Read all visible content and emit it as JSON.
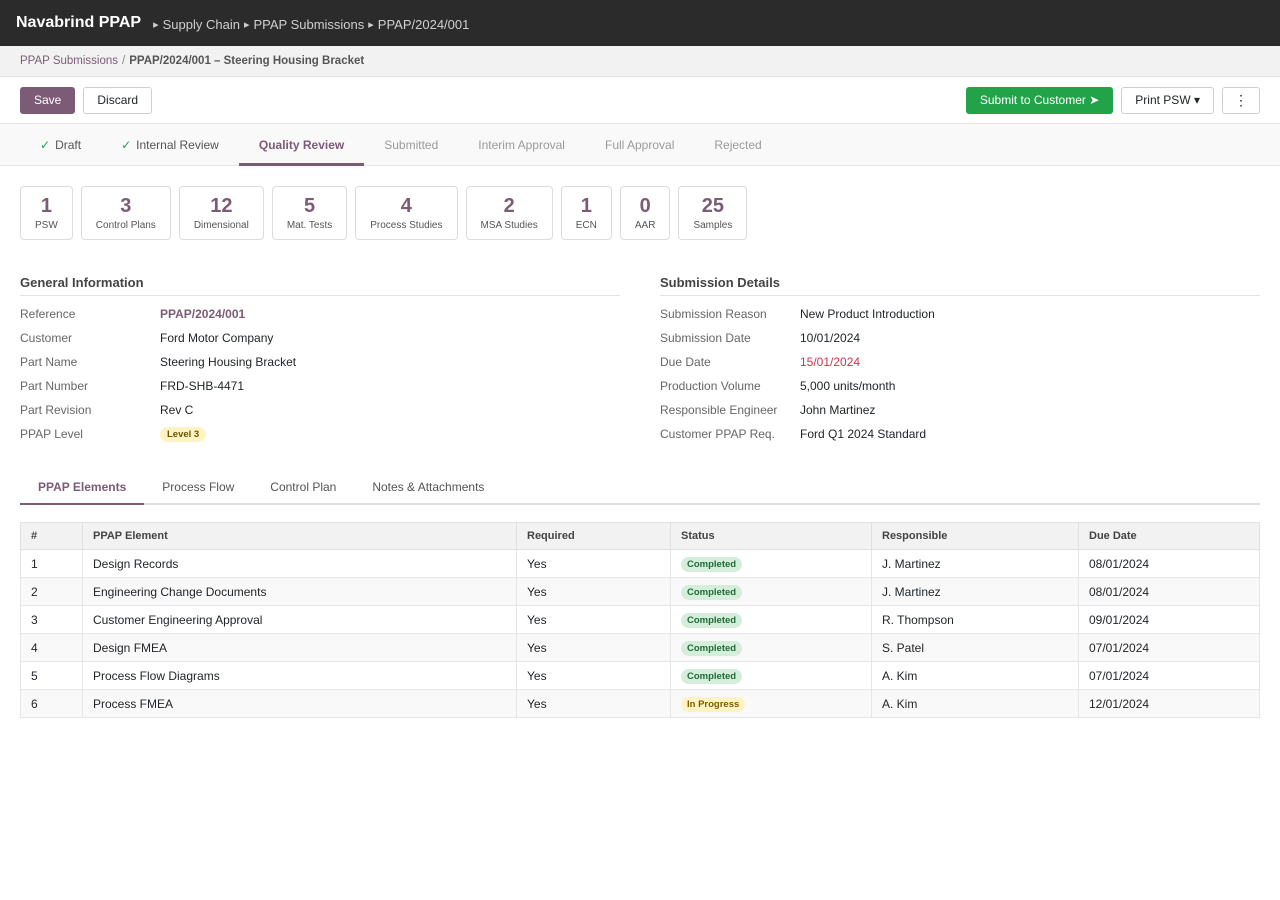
{
  "app": {
    "name": "Navabrind PPAP",
    "breadcrumbs": [
      "Supply Chain",
      "PPAP Submissions",
      "PPAP/2024/001"
    ]
  },
  "crumbbar": {
    "parent": "PPAP Submissions",
    "separator": "/",
    "current": "PPAP/2024/001 – Steering Housing Bracket"
  },
  "controls": {
    "save": "Save",
    "discard": "Discard",
    "submit": "Submit to Customer ➤",
    "print": "Print PSW ▾",
    "more": "⋮"
  },
  "stages": [
    {
      "label": "Draft",
      "state": "done"
    },
    {
      "label": "Internal Review",
      "state": "done"
    },
    {
      "label": "Quality Review",
      "state": "active"
    },
    {
      "label": "Submitted",
      "state": "todo"
    },
    {
      "label": "Interim Approval",
      "state": "todo"
    },
    {
      "label": "Full Approval",
      "state": "todo"
    },
    {
      "label": "Rejected",
      "state": "todo"
    }
  ],
  "stats": [
    {
      "value": "1",
      "label": "PSW"
    },
    {
      "value": "3",
      "label": "Control Plans"
    },
    {
      "value": "12",
      "label": "Dimensional"
    },
    {
      "value": "5",
      "label": "Mat. Tests"
    },
    {
      "value": "4",
      "label": "Process Studies"
    },
    {
      "value": "2",
      "label": "MSA Studies"
    },
    {
      "value": "1",
      "label": "ECN"
    },
    {
      "value": "0",
      "label": "AAR"
    },
    {
      "value": "25",
      "label": "Samples"
    }
  ],
  "general": {
    "title": "General Information",
    "fields": [
      {
        "label": "Reference",
        "value": "PPAP/2024/001"
      },
      {
        "label": "Customer",
        "value": "Ford Motor Company"
      },
      {
        "label": "Part Name",
        "value": "Steering Housing Bracket"
      },
      {
        "label": "Part Number",
        "value": "FRD-SHB-4471"
      },
      {
        "label": "Part Revision",
        "value": "Rev C"
      },
      {
        "label": "PPAP Level",
        "value": "Level 3"
      }
    ]
  },
  "submission": {
    "title": "Submission Details",
    "fields": [
      {
        "label": "Submission Reason",
        "value": "New Product Introduction"
      },
      {
        "label": "Submission Date",
        "value": "10/01/2024"
      },
      {
        "label": "Due Date",
        "value": "15/01/2024"
      },
      {
        "label": "Production Volume",
        "value": "5,000 units/month"
      },
      {
        "label": "Responsible Engineer",
        "value": "John Martinez"
      },
      {
        "label": "Customer PPAP Req.",
        "value": "Ford Q1 2024 Standard"
      }
    ]
  },
  "notebook": {
    "tabs": [
      "PPAP Elements",
      "Process Flow",
      "Control Plan",
      "Notes & Attachments"
    ]
  },
  "table": {
    "headers": [
      "#",
      "PPAP Element",
      "Required",
      "Status",
      "Responsible",
      "Due Date"
    ],
    "rows": [
      {
        "num": "1",
        "element": "Design Records",
        "required": "Yes",
        "status": "Completed",
        "responsible": "J. Martinez",
        "due": "08/01/2024"
      },
      {
        "num": "2",
        "element": "Engineering Change Documents",
        "required": "Yes",
        "status": "Completed",
        "responsible": "J. Martinez",
        "due": "08/01/2024"
      },
      {
        "num": "3",
        "element": "Customer Engineering Approval",
        "required": "Yes",
        "status": "Completed",
        "responsible": "R. Thompson",
        "due": "09/01/2024"
      },
      {
        "num": "4",
        "element": "Design FMEA",
        "required": "Yes",
        "status": "Completed",
        "responsible": "S. Patel",
        "due": "07/01/2024"
      },
      {
        "num": "5",
        "element": "Process Flow Diagrams",
        "required": "Yes",
        "status": "Completed",
        "responsible": "A. Kim",
        "due": "07/01/2024"
      },
      {
        "num": "6",
        "element": "Process FMEA",
        "required": "Yes",
        "status": "In Progress",
        "responsible": "A. Kim",
        "due": "12/01/2024"
      }
    ]
  },
  "colors": {
    "brand": "#7c5b76",
    "success": "#22a34a",
    "topbar": "#2b2b2b",
    "due_date": "#d6334d"
  }
}
